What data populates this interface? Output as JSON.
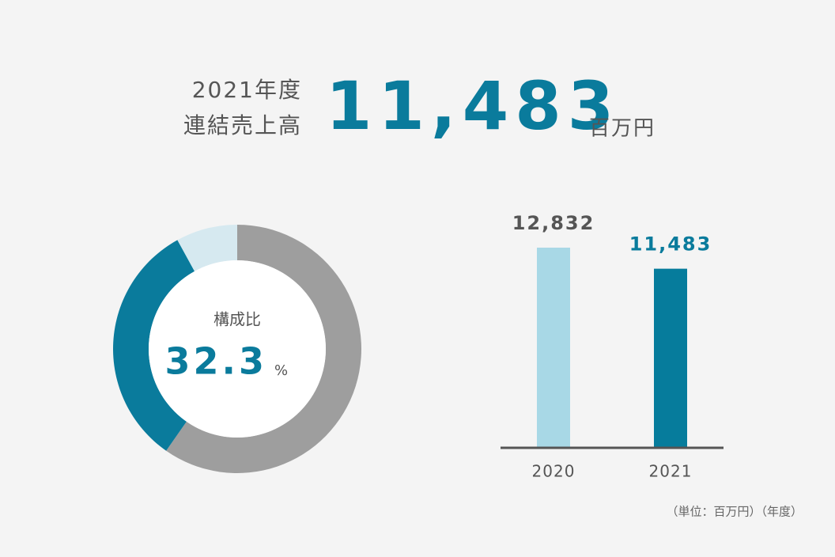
{
  "header": {
    "year": "2021年度",
    "label": "連結売上高",
    "value": "11,483",
    "unit": "百万円"
  },
  "chart_data": [
    {
      "type": "donut",
      "title": "構成比",
      "values": [
        59.7,
        32.3,
        8.0
      ],
      "colors": [
        "#9e9e9e",
        "#0a7b9c",
        "#d6e9f0"
      ],
      "unit": "%"
    },
    {
      "type": "bar",
      "categories": [
        "2020",
        "2021"
      ],
      "values": [
        12832,
        11483
      ],
      "value_labels": [
        "12,832",
        "11,483"
      ],
      "colors": [
        "#a8d8e6",
        "#067c9c"
      ],
      "value_label_colors": [
        "#555555",
        "#0a7b9c"
      ],
      "ylim": [
        0,
        14000
      ]
    }
  ],
  "note": "（単位：百万円）（年度）"
}
